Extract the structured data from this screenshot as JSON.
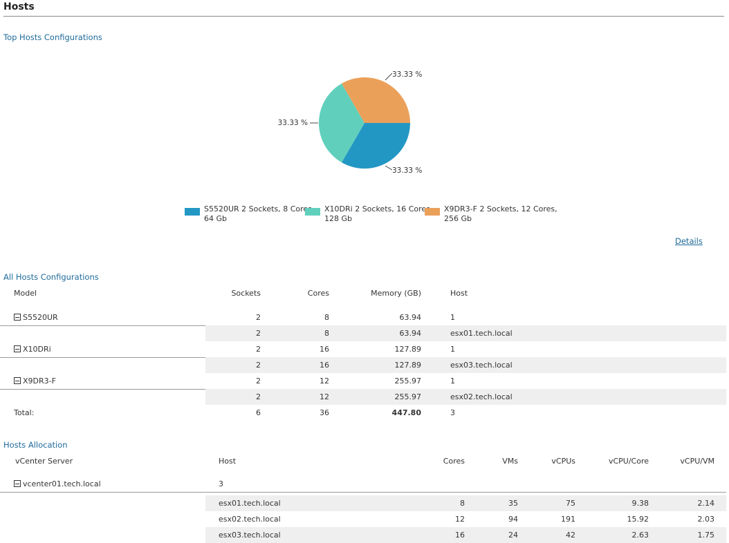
{
  "title": "Hosts",
  "top_section": {
    "title": "Top Hosts Configurations",
    "details_link": "Details"
  },
  "chart_data": {
    "type": "pie",
    "title": "Top Hosts Configurations",
    "slices": [
      {
        "label": "S5520UR 2 Sockets, 8 Cores, 64 Gb",
        "value": 33.33,
        "data_label": "33.33 %",
        "color": "#2397c4"
      },
      {
        "label": "X10DRi 2 Sockets, 16 Cores, 128 Gb",
        "value": 33.33,
        "data_label": "33.33 %",
        "color": "#60cfbc"
      },
      {
        "label": "X9DR3-F 2 Sockets, 12 Cores, 256 Gb",
        "value": 33.33,
        "data_label": "33.33 %",
        "color": "#eba05a"
      }
    ],
    "legend_placement": "bottom"
  },
  "legend": [
    {
      "line1": "S5520UR 2 Sockets, 8 Cores,",
      "line2": "64 Gb"
    },
    {
      "line1": "X10DRi 2 Sockets, 16 Cores,",
      "line2": "128 Gb"
    },
    {
      "line1": "X9DR3-F 2 Sockets, 12 Cores,",
      "line2": "256 Gb"
    }
  ],
  "all_hosts": {
    "title": "All Hosts Configurations",
    "headers": [
      "Model",
      "Sockets",
      "Cores",
      "Memory (GB)",
      "Host"
    ],
    "rows": [
      {
        "type": "group",
        "cells": [
          "S5520UR",
          "2",
          "8",
          "63.94",
          "1"
        ]
      },
      {
        "type": "child",
        "cells": [
          "",
          "2",
          "8",
          "63.94",
          "esx01.tech.local"
        ]
      },
      {
        "type": "group",
        "cells": [
          "X10DRi",
          "2",
          "16",
          "127.89",
          "1"
        ]
      },
      {
        "type": "child",
        "cells": [
          "",
          "2",
          "16",
          "127.89",
          "esx03.tech.local"
        ]
      },
      {
        "type": "group",
        "cells": [
          "X9DR3-F",
          "2",
          "12",
          "255.97",
          "1"
        ]
      },
      {
        "type": "child",
        "cells": [
          "",
          "2",
          "12",
          "255.97",
          "esx02.tech.local"
        ]
      },
      {
        "type": "total",
        "cells": [
          "Total:",
          "6",
          "36",
          "447.80",
          "3"
        ]
      }
    ]
  },
  "allocation": {
    "title": "Hosts Allocation",
    "headers": [
      "vCenter Server",
      "Host",
      "Cores",
      "VMs",
      "vCPUs",
      "vCPU/Core",
      "vCPU/VM"
    ],
    "rows": [
      {
        "type": "group",
        "cells": [
          "vcenter01.tech.local",
          "3",
          "",
          "",
          "",
          "",
          ""
        ]
      },
      {
        "type": "child",
        "shade": true,
        "cells": [
          "",
          "esx01.tech.local",
          "8",
          "35",
          "75",
          "9.38",
          "2.14"
        ]
      },
      {
        "type": "child",
        "shade": false,
        "cells": [
          "",
          "esx02.tech.local",
          "12",
          "94",
          "191",
          "15.92",
          "2.03"
        ]
      },
      {
        "type": "child",
        "shade": true,
        "cells": [
          "",
          "esx03.tech.local",
          "16",
          "24",
          "42",
          "2.63",
          "1.75"
        ]
      }
    ]
  }
}
